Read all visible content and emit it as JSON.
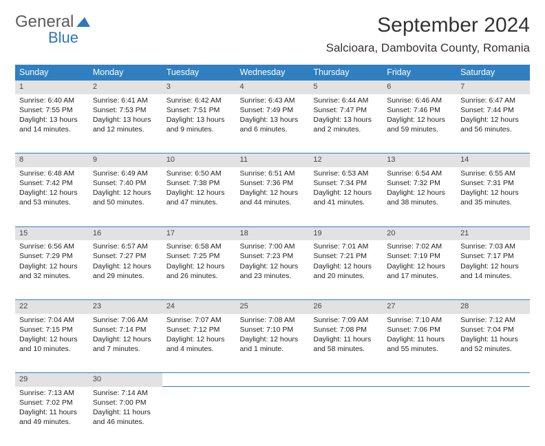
{
  "logo": {
    "general": "General",
    "blue": "Blue"
  },
  "title": "September 2024",
  "location": "Salcioara, Dambovita County, Romania",
  "colors": {
    "header_bg": "#2f7fc1",
    "header_fg": "#ffffff",
    "daynum_bg": "#e2e2e2",
    "rule": "#2f7fc1",
    "logo_gray": "#5a5a5a",
    "logo_blue": "#2b78bd"
  },
  "day_headers": [
    "Sunday",
    "Monday",
    "Tuesday",
    "Wednesday",
    "Thursday",
    "Friday",
    "Saturday"
  ],
  "weeks": [
    [
      {
        "n": "1",
        "sr": "Sunrise: 6:40 AM",
        "ss": "Sunset: 7:55 PM",
        "d1": "Daylight: 13 hours",
        "d2": "and 14 minutes."
      },
      {
        "n": "2",
        "sr": "Sunrise: 6:41 AM",
        "ss": "Sunset: 7:53 PM",
        "d1": "Daylight: 13 hours",
        "d2": "and 12 minutes."
      },
      {
        "n": "3",
        "sr": "Sunrise: 6:42 AM",
        "ss": "Sunset: 7:51 PM",
        "d1": "Daylight: 13 hours",
        "d2": "and 9 minutes."
      },
      {
        "n": "4",
        "sr": "Sunrise: 6:43 AM",
        "ss": "Sunset: 7:49 PM",
        "d1": "Daylight: 13 hours",
        "d2": "and 6 minutes."
      },
      {
        "n": "5",
        "sr": "Sunrise: 6:44 AM",
        "ss": "Sunset: 7:47 PM",
        "d1": "Daylight: 13 hours",
        "d2": "and 2 minutes."
      },
      {
        "n": "6",
        "sr": "Sunrise: 6:46 AM",
        "ss": "Sunset: 7:46 PM",
        "d1": "Daylight: 12 hours",
        "d2": "and 59 minutes."
      },
      {
        "n": "7",
        "sr": "Sunrise: 6:47 AM",
        "ss": "Sunset: 7:44 PM",
        "d1": "Daylight: 12 hours",
        "d2": "and 56 minutes."
      }
    ],
    [
      {
        "n": "8",
        "sr": "Sunrise: 6:48 AM",
        "ss": "Sunset: 7:42 PM",
        "d1": "Daylight: 12 hours",
        "d2": "and 53 minutes."
      },
      {
        "n": "9",
        "sr": "Sunrise: 6:49 AM",
        "ss": "Sunset: 7:40 PM",
        "d1": "Daylight: 12 hours",
        "d2": "and 50 minutes."
      },
      {
        "n": "10",
        "sr": "Sunrise: 6:50 AM",
        "ss": "Sunset: 7:38 PM",
        "d1": "Daylight: 12 hours",
        "d2": "and 47 minutes."
      },
      {
        "n": "11",
        "sr": "Sunrise: 6:51 AM",
        "ss": "Sunset: 7:36 PM",
        "d1": "Daylight: 12 hours",
        "d2": "and 44 minutes."
      },
      {
        "n": "12",
        "sr": "Sunrise: 6:53 AM",
        "ss": "Sunset: 7:34 PM",
        "d1": "Daylight: 12 hours",
        "d2": "and 41 minutes."
      },
      {
        "n": "13",
        "sr": "Sunrise: 6:54 AM",
        "ss": "Sunset: 7:32 PM",
        "d1": "Daylight: 12 hours",
        "d2": "and 38 minutes."
      },
      {
        "n": "14",
        "sr": "Sunrise: 6:55 AM",
        "ss": "Sunset: 7:31 PM",
        "d1": "Daylight: 12 hours",
        "d2": "and 35 minutes."
      }
    ],
    [
      {
        "n": "15",
        "sr": "Sunrise: 6:56 AM",
        "ss": "Sunset: 7:29 PM",
        "d1": "Daylight: 12 hours",
        "d2": "and 32 minutes."
      },
      {
        "n": "16",
        "sr": "Sunrise: 6:57 AM",
        "ss": "Sunset: 7:27 PM",
        "d1": "Daylight: 12 hours",
        "d2": "and 29 minutes."
      },
      {
        "n": "17",
        "sr": "Sunrise: 6:58 AM",
        "ss": "Sunset: 7:25 PM",
        "d1": "Daylight: 12 hours",
        "d2": "and 26 minutes."
      },
      {
        "n": "18",
        "sr": "Sunrise: 7:00 AM",
        "ss": "Sunset: 7:23 PM",
        "d1": "Daylight: 12 hours",
        "d2": "and 23 minutes."
      },
      {
        "n": "19",
        "sr": "Sunrise: 7:01 AM",
        "ss": "Sunset: 7:21 PM",
        "d1": "Daylight: 12 hours",
        "d2": "and 20 minutes."
      },
      {
        "n": "20",
        "sr": "Sunrise: 7:02 AM",
        "ss": "Sunset: 7:19 PM",
        "d1": "Daylight: 12 hours",
        "d2": "and 17 minutes."
      },
      {
        "n": "21",
        "sr": "Sunrise: 7:03 AM",
        "ss": "Sunset: 7:17 PM",
        "d1": "Daylight: 12 hours",
        "d2": "and 14 minutes."
      }
    ],
    [
      {
        "n": "22",
        "sr": "Sunrise: 7:04 AM",
        "ss": "Sunset: 7:15 PM",
        "d1": "Daylight: 12 hours",
        "d2": "and 10 minutes."
      },
      {
        "n": "23",
        "sr": "Sunrise: 7:06 AM",
        "ss": "Sunset: 7:14 PM",
        "d1": "Daylight: 12 hours",
        "d2": "and 7 minutes."
      },
      {
        "n": "24",
        "sr": "Sunrise: 7:07 AM",
        "ss": "Sunset: 7:12 PM",
        "d1": "Daylight: 12 hours",
        "d2": "and 4 minutes."
      },
      {
        "n": "25",
        "sr": "Sunrise: 7:08 AM",
        "ss": "Sunset: 7:10 PM",
        "d1": "Daylight: 12 hours",
        "d2": "and 1 minute."
      },
      {
        "n": "26",
        "sr": "Sunrise: 7:09 AM",
        "ss": "Sunset: 7:08 PM",
        "d1": "Daylight: 11 hours",
        "d2": "and 58 minutes."
      },
      {
        "n": "27",
        "sr": "Sunrise: 7:10 AM",
        "ss": "Sunset: 7:06 PM",
        "d1": "Daylight: 11 hours",
        "d2": "and 55 minutes."
      },
      {
        "n": "28",
        "sr": "Sunrise: 7:12 AM",
        "ss": "Sunset: 7:04 PM",
        "d1": "Daylight: 11 hours",
        "d2": "and 52 minutes."
      }
    ],
    [
      {
        "n": "29",
        "sr": "Sunrise: 7:13 AM",
        "ss": "Sunset: 7:02 PM",
        "d1": "Daylight: 11 hours",
        "d2": "and 49 minutes."
      },
      {
        "n": "30",
        "sr": "Sunrise: 7:14 AM",
        "ss": "Sunset: 7:00 PM",
        "d1": "Daylight: 11 hours",
        "d2": "and 46 minutes."
      },
      null,
      null,
      null,
      null,
      null
    ]
  ]
}
